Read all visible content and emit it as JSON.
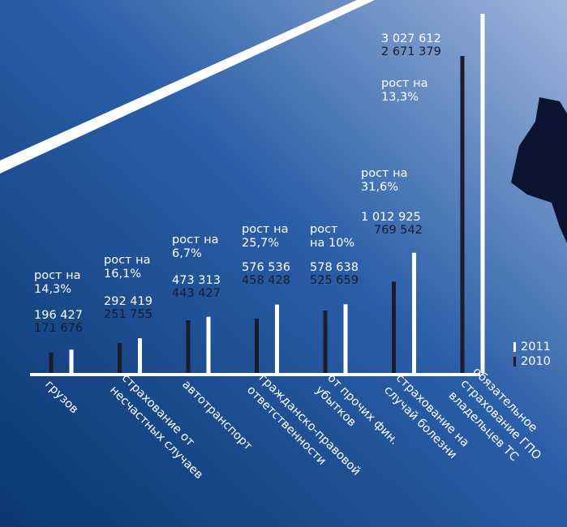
{
  "chart_data": {
    "type": "bar",
    "categories": [
      [
        "грузов"
      ],
      [
        "страхование от",
        "несчастных случаев"
      ],
      [
        "автотранспорт"
      ],
      [
        "гражданско-правовой",
        "ответственности"
      ],
      [
        "от прочих фин.",
        "убытков"
      ],
      [
        "страхование на",
        "случай болезни"
      ],
      [
        "обязательное",
        "страхование ГПО",
        "владельцев ТС"
      ]
    ],
    "series": [
      {
        "name": "2011",
        "color": "#ffffff",
        "values": [
          196427,
          292419,
          473313,
          576536,
          578638,
          1012925,
          3027612
        ],
        "value_labels": [
          "196 427",
          "292 419",
          "473 313",
          "576 536",
          "578 638",
          "1 012 925",
          "3 027 612"
        ]
      },
      {
        "name": "2010",
        "color": "#1b1b2b",
        "values": [
          171676,
          251755,
          443427,
          458428,
          525659,
          769542,
          2671379
        ],
        "value_labels": [
          "171 676",
          "251 755",
          "443 427",
          "458 428",
          "525 659",
          "769 542",
          "2 671 379"
        ]
      }
    ],
    "annotations": [
      [
        "рост на",
        "14,3%"
      ],
      [
        "рост на",
        "16,1%"
      ],
      [
        "рост на",
        "6,7%"
      ],
      [
        "рост на",
        "25,7%"
      ],
      [
        "рост",
        "на 10%"
      ],
      [
        "рост на",
        "31,6%"
      ],
      [
        "рост на",
        "13,3%"
      ]
    ]
  }
}
